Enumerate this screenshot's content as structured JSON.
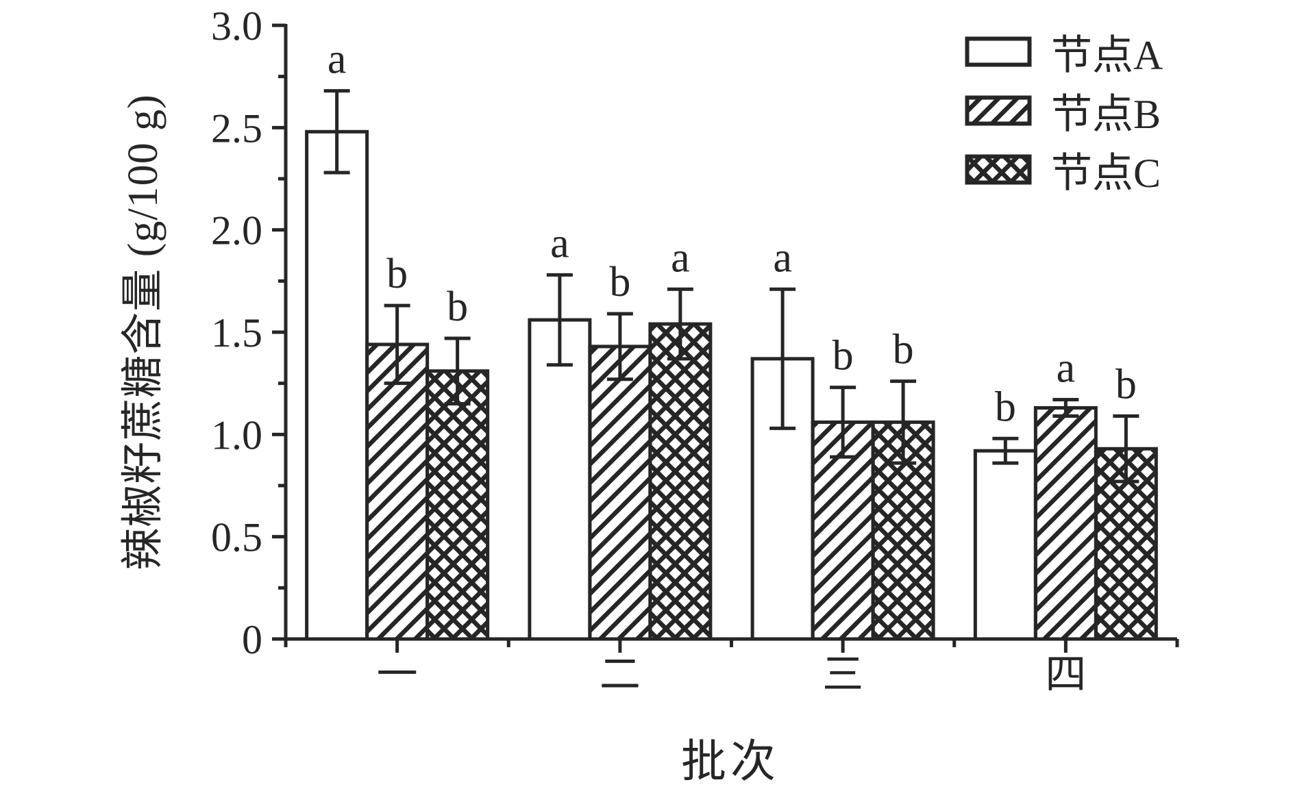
{
  "chart_data": {
    "type": "bar",
    "title": "",
    "categories": [
      "一",
      "二",
      "三",
      "四"
    ],
    "series": [
      {
        "name": "节点A",
        "pattern": "solid-white",
        "values": [
          2.48,
          1.56,
          1.37,
          0.92
        ],
        "errors": [
          0.2,
          0.22,
          0.34,
          0.06
        ],
        "letters": [
          "a",
          "a",
          "a",
          "b"
        ]
      },
      {
        "name": "节点B",
        "pattern": "diagonal-hatch",
        "values": [
          1.44,
          1.43,
          1.06,
          1.13
        ],
        "errors": [
          0.19,
          0.16,
          0.17,
          0.04
        ],
        "letters": [
          "b",
          "b",
          "b",
          "a"
        ]
      },
      {
        "name": "节点C",
        "pattern": "cross-hatch",
        "values": [
          1.31,
          1.54,
          1.06,
          0.93
        ],
        "errors": [
          0.16,
          0.17,
          0.2,
          0.16
        ],
        "letters": [
          "b",
          "a",
          "b",
          "b"
        ]
      }
    ],
    "xlabel": "批次",
    "ylabel": "辣椒籽蔗糖含量 (g/100 g)",
    "ylim": [
      0,
      3.0
    ],
    "ytick_step": 0.5,
    "yminor_step": 0.25,
    "ytick_labels": [
      "0",
      "0.5",
      "1.0",
      "1.5",
      "2.0",
      "2.5",
      "3.0"
    ],
    "legend_position": "top-right",
    "grid": false,
    "ink_color": "#262626",
    "background_color": "#ffffff"
  }
}
